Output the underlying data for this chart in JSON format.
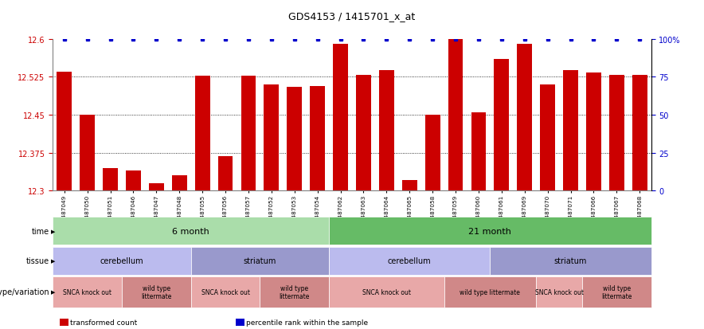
{
  "title": "GDS4153 / 1415701_x_at",
  "samples": [
    "GSM487049",
    "GSM487050",
    "GSM487051",
    "GSM487046",
    "GSM487047",
    "GSM487048",
    "GSM487055",
    "GSM487056",
    "GSM487057",
    "GSM487052",
    "GSM487053",
    "GSM487054",
    "GSM487062",
    "GSM487063",
    "GSM487064",
    "GSM487065",
    "GSM487058",
    "GSM487059",
    "GSM487060",
    "GSM487061",
    "GSM487069",
    "GSM487070",
    "GSM487071",
    "GSM487066",
    "GSM487067",
    "GSM487068"
  ],
  "bar_values": [
    12.535,
    12.45,
    12.345,
    12.34,
    12.315,
    12.33,
    12.527,
    12.368,
    12.527,
    12.51,
    12.505,
    12.507,
    12.59,
    12.528,
    12.538,
    12.32,
    12.45,
    12.6,
    12.455,
    12.56,
    12.59,
    12.51,
    12.538,
    12.534,
    12.528,
    12.528
  ],
  "percentile_values": [
    100,
    100,
    100,
    100,
    100,
    100,
    100,
    100,
    100,
    100,
    100,
    100,
    100,
    100,
    100,
    100,
    100,
    100,
    100,
    100,
    100,
    100,
    100,
    100,
    100,
    100
  ],
  "ymin": 12.3,
  "ymax": 12.6,
  "yticks": [
    12.3,
    12.375,
    12.45,
    12.525,
    12.6
  ],
  "ytick_labels": [
    "12.3",
    "12.375",
    "12.45",
    "12.525",
    "12.6"
  ],
  "y2ticks": [
    0,
    25,
    50,
    75,
    100
  ],
  "y2tick_labels": [
    "0",
    "25",
    "50",
    "75",
    "100%"
  ],
  "bar_color": "#cc0000",
  "percentile_color": "#0000cc",
  "time_groups": [
    {
      "label": "6 month",
      "start": 0,
      "end": 11,
      "color": "#aaddaa"
    },
    {
      "label": "21 month",
      "start": 12,
      "end": 25,
      "color": "#66bb66"
    }
  ],
  "tissue_groups": [
    {
      "label": "cerebellum",
      "start": 0,
      "end": 5,
      "color": "#bbbbee"
    },
    {
      "label": "striatum",
      "start": 6,
      "end": 11,
      "color": "#9999cc"
    },
    {
      "label": "cerebellum",
      "start": 12,
      "end": 18,
      "color": "#bbbbee"
    },
    {
      "label": "striatum",
      "start": 19,
      "end": 25,
      "color": "#9999cc"
    }
  ],
  "genotype_groups": [
    {
      "label": "SNCA knock out",
      "start": 0,
      "end": 2,
      "color": "#e8a8a8"
    },
    {
      "label": "wild type\nlittermate",
      "start": 3,
      "end": 5,
      "color": "#d08888"
    },
    {
      "label": "SNCA knock out",
      "start": 6,
      "end": 8,
      "color": "#e8a8a8"
    },
    {
      "label": "wild type\nlittermate",
      "start": 9,
      "end": 11,
      "color": "#d08888"
    },
    {
      "label": "SNCA knock out",
      "start": 12,
      "end": 16,
      "color": "#e8a8a8"
    },
    {
      "label": "wild type littermate",
      "start": 17,
      "end": 20,
      "color": "#d08888"
    },
    {
      "label": "SNCA knock out",
      "start": 21,
      "end": 22,
      "color": "#e8a8a8"
    },
    {
      "label": "wild type\nlittermate",
      "start": 23,
      "end": 25,
      "color": "#d08888"
    }
  ],
  "legend_items": [
    {
      "label": "transformed count",
      "color": "#cc0000"
    },
    {
      "label": "percentile rank within the sample",
      "color": "#0000cc"
    }
  ]
}
